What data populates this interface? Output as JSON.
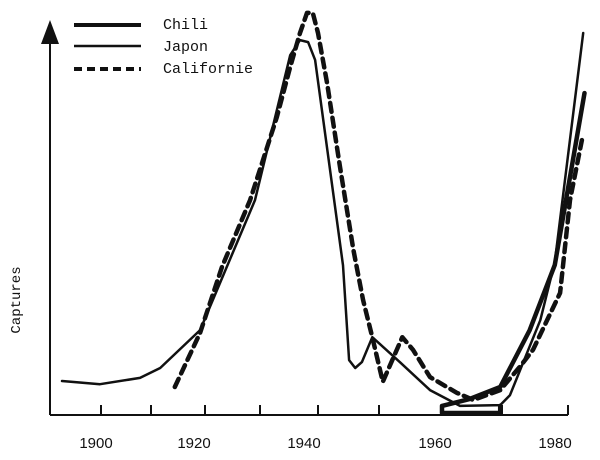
{
  "chart_data": {
    "type": "line",
    "title": "",
    "xlabel": "",
    "ylabel": "Captures",
    "xlim": [
      1890,
      1985
    ],
    "ylim": [
      0,
      105
    ],
    "x_ticks": [
      1900,
      1910,
      1920,
      1930,
      1940,
      1950,
      1960,
      1970,
      1980
    ],
    "x_tick_labels": [
      "1900",
      "1920",
      "1940",
      "1960",
      "1980"
    ],
    "grid": false,
    "legend_position": "top-left",
    "series": [
      {
        "name": "Chili",
        "style": "thick-solid",
        "points": [
          [
            1969.7,
            2.3
          ],
          [
            1969.7,
            0.5
          ],
          [
            1960,
            0.5
          ],
          [
            1960,
            2.3
          ],
          [
            1964.5,
            4
          ],
          [
            1969.7,
            7.1
          ],
          [
            1974.2,
            21.5
          ],
          [
            1978,
            38
          ],
          [
            1982.5,
            81.5
          ]
        ]
      },
      {
        "name": "Japon",
        "style": "thin-solid",
        "points": [
          [
            1892.2,
            8.6
          ],
          [
            1899.8,
            7.8
          ],
          [
            1907.8,
            9.4
          ],
          [
            1911.7,
            11.9
          ],
          [
            1919.1,
            21.5
          ],
          [
            1929.1,
            54.4
          ],
          [
            1935.2,
            91.1
          ],
          [
            1936.9,
            94.9
          ],
          [
            1938.3,
            94.4
          ],
          [
            1939.5,
            89.9
          ],
          [
            1944.1,
            37.9
          ],
          [
            1945.1,
            13.9
          ],
          [
            1946.1,
            11.9
          ],
          [
            1947.2,
            13.4
          ],
          [
            1948.9,
            19.7
          ],
          [
            1953.3,
            13.4
          ],
          [
            1958.1,
            6.3
          ],
          [
            1963,
            2.3
          ],
          [
            1969.7,
            2.5
          ],
          [
            1971.2,
            5
          ],
          [
            1975.8,
            24
          ],
          [
            1978,
            38.7
          ],
          [
            1982.3,
            96.7
          ]
        ]
      },
      {
        "name": "Californie",
        "style": "dashed",
        "points": [
          [
            1914.4,
            7.1
          ],
          [
            1919.1,
            20.8
          ],
          [
            1923.1,
            37.5
          ],
          [
            1928.2,
            54.4
          ],
          [
            1932.9,
            75.4
          ],
          [
            1935.2,
            88.1
          ],
          [
            1936.9,
            96.7
          ],
          [
            1938.1,
            101.8
          ],
          [
            1939.1,
            101.8
          ],
          [
            1940,
            96.7
          ],
          [
            1941.5,
            84
          ],
          [
            1943.6,
            62.8
          ],
          [
            1945.8,
            41.8
          ],
          [
            1947.4,
            29.1
          ],
          [
            1948.9,
            19.7
          ],
          [
            1950.6,
            8.4
          ],
          [
            1953.7,
            19.7
          ],
          [
            1955.4,
            16.5
          ],
          [
            1958.1,
            9.6
          ],
          [
            1962.5,
            5.6
          ],
          [
            1965.2,
            3.8
          ],
          [
            1969.7,
            6.3
          ],
          [
            1972.7,
            12.2
          ],
          [
            1974.7,
            16.5
          ],
          [
            1978.8,
            30.9
          ],
          [
            1980.3,
            54.4
          ],
          [
            1982.1,
            69.6
          ]
        ]
      }
    ]
  }
}
